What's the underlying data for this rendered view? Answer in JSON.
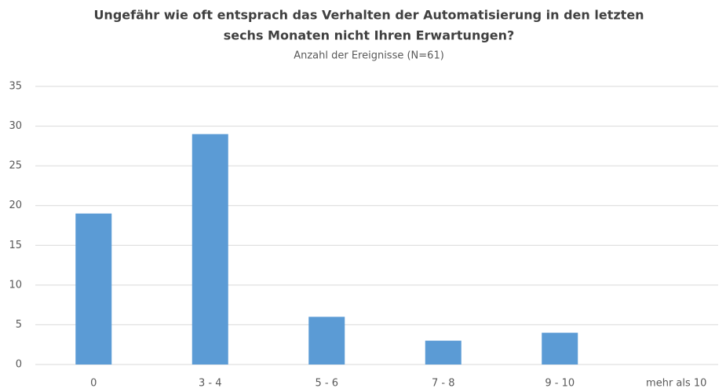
{
  "chart_data": {
    "type": "bar",
    "title": [
      "Ungefähr wie oft entsprach das Verhalten der Automatisierung in den letzten",
      "sechs Monaten nicht Ihren Erwartungen?"
    ],
    "subtitle": "Anzahl der Ereignisse (N=61)",
    "categories": [
      "0",
      "3 - 4",
      "5 - 6",
      "7 - 8",
      "9 - 10",
      "mehr als 10"
    ],
    "values": [
      19,
      29,
      6,
      3,
      4,
      0
    ],
    "color": "#5b9bd5",
    "ylim": [
      0,
      35
    ],
    "yticks": [
      0,
      5,
      10,
      15,
      20,
      25,
      30,
      35
    ],
    "grid": true
  }
}
